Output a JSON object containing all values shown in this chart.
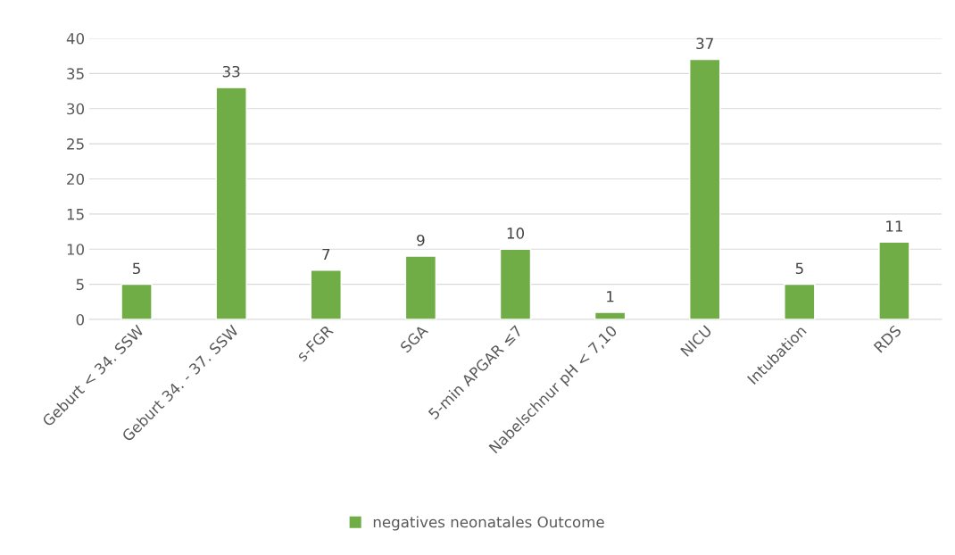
{
  "chart_data": {
    "type": "bar",
    "categories": [
      "Geburt < 34. SSW",
      "Geburt 34. - 37. SSW",
      "s-FGR",
      "SGA",
      "5-min APGAR ≤7",
      "Nabelschnur pH < 7,10",
      "NICU",
      "Intubation",
      "RDS"
    ],
    "series": [
      {
        "name": "negatives neonatales Outcome",
        "color": "#70ad47",
        "values": [
          5,
          33,
          7,
          9,
          10,
          1,
          37,
          5,
          11
        ]
      }
    ],
    "ylim": [
      0,
      40
    ],
    "yticks": [
      0,
      5,
      10,
      15,
      20,
      25,
      30,
      35,
      40
    ],
    "grid": "y",
    "legend": "bottom",
    "data_labels": true
  }
}
